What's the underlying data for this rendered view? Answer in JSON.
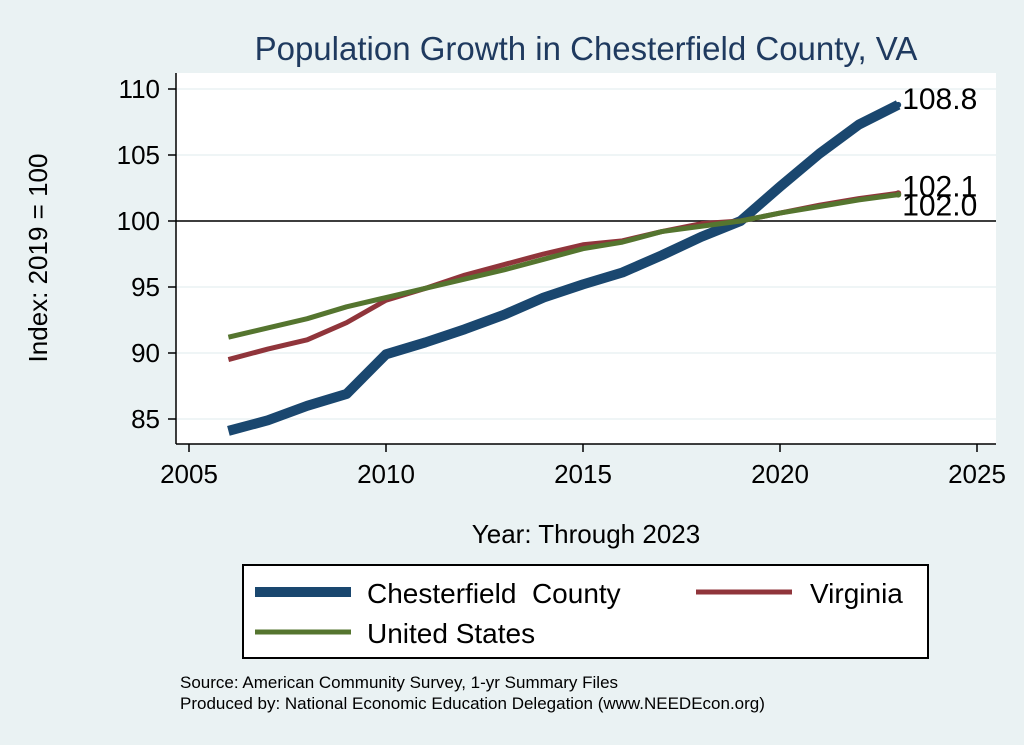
{
  "chart_data": {
    "type": "line",
    "title": "Population Growth in Chesterfield County, VA",
    "xlabel": "Year: Through 2023",
    "ylabel": "Index: 2019 = 100",
    "xlim": [
      2005,
      2025
    ],
    "ylim": [
      83,
      111
    ],
    "xticks": [
      2005,
      2010,
      2015,
      2020,
      2025
    ],
    "yticks": [
      85,
      90,
      95,
      100,
      105,
      110
    ],
    "reference_line": 100,
    "grid": true,
    "x": [
      2006,
      2007,
      2008,
      2009,
      2010,
      2011,
      2012,
      2013,
      2014,
      2015,
      2016,
      2017,
      2018,
      2019,
      2020,
      2021,
      2022,
      2023
    ],
    "series": [
      {
        "name": "Chesterfield  County",
        "color": "#1a476f",
        "width": 10,
        "values": [
          84.1,
          84.9,
          86.0,
          86.9,
          89.9,
          90.8,
          91.8,
          92.9,
          94.2,
          95.2,
          96.1,
          97.4,
          98.8,
          100.0,
          102.6,
          105.1,
          107.3,
          108.8
        ],
        "end_label": "108.8"
      },
      {
        "name": "Virginia",
        "color": "#90353b",
        "width": 5,
        "values": [
          89.5,
          90.3,
          91.0,
          92.3,
          94.0,
          94.9,
          95.9,
          96.7,
          97.5,
          98.2,
          98.5,
          99.2,
          99.8,
          100.0,
          100.6,
          101.2,
          101.7,
          102.1
        ],
        "end_label": "102.1"
      },
      {
        "name": "United States",
        "color": "#55752f",
        "width": 5,
        "values": [
          91.2,
          91.9,
          92.6,
          93.5,
          94.2,
          94.9,
          95.6,
          96.3,
          97.1,
          97.9,
          98.4,
          99.2,
          99.6,
          100.0,
          100.6,
          101.1,
          101.6,
          102.0
        ],
        "end_label": "102.0"
      }
    ],
    "legend": {
      "placement": "bottom",
      "columns": 2,
      "order": [
        "Chesterfield  County",
        "Virginia",
        "United States"
      ]
    },
    "notes": [
      "Source: American Community Survey, 1-yr Summary Files",
      "Produced by: National Economic Education Delegation (www.NEEDEcon.org)"
    ]
  },
  "colors": {
    "background": "#eaf2f3",
    "plot_background": "#ffffff",
    "title": "#1f3a5f",
    "gridline": "#eaf2f3"
  }
}
